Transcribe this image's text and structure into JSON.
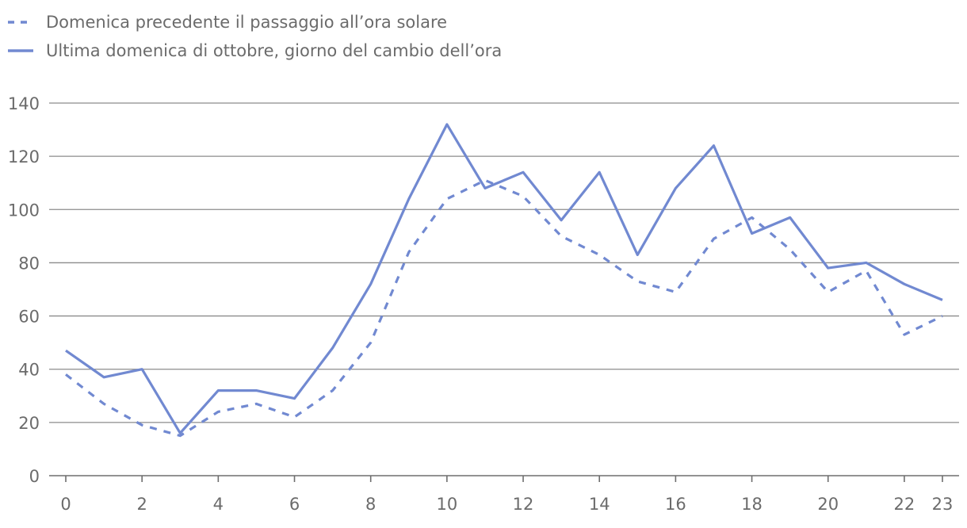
{
  "chart_data": {
    "type": "line",
    "title": "",
    "xlabel": "",
    "ylabel": "",
    "x": [
      0,
      1,
      2,
      3,
      4,
      5,
      6,
      7,
      8,
      9,
      10,
      11,
      12,
      13,
      14,
      15,
      16,
      17,
      18,
      19,
      20,
      21,
      22,
      23
    ],
    "xticks": [
      0,
      2,
      4,
      6,
      8,
      10,
      12,
      14,
      16,
      18,
      20,
      22,
      23
    ],
    "yticks": [
      0,
      20,
      40,
      60,
      80,
      100,
      120,
      140
    ],
    "ylim": [
      0,
      140
    ],
    "xlim": [
      0,
      23
    ],
    "grid": "horizontal",
    "legend_position": "top-left",
    "series": [
      {
        "name": "Domenica precedente il passaggio all’ora solare",
        "style": "dashed",
        "color": "#7189d1",
        "values": [
          38,
          27,
          19,
          15,
          24,
          27,
          22,
          32,
          50,
          84,
          104,
          111,
          105,
          90,
          83,
          73,
          69,
          89,
          97,
          85,
          69,
          77,
          53,
          60
        ]
      },
      {
        "name": "Ultima domenica di ottobre, giorno del cambio dell’ora",
        "style": "solid",
        "color": "#7189d1",
        "values": [
          47,
          37,
          40,
          16,
          32,
          32,
          29,
          48,
          72,
          104,
          132,
          108,
          114,
          96,
          114,
          83,
          108,
          124,
          91,
          97,
          78,
          80,
          72,
          66
        ]
      }
    ]
  }
}
